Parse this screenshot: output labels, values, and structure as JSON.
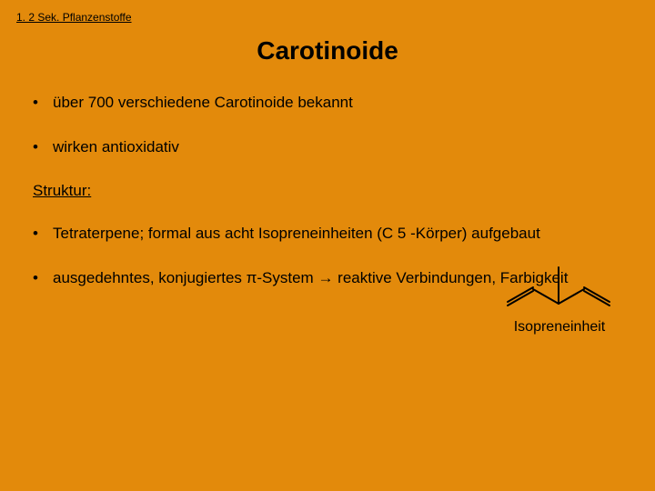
{
  "breadcrumb": "1. 2 Sek. Pflanzenstoffe",
  "title": "Carotinoide",
  "bullets_top": [
    "über 700 verschiedene Carotinoide bekannt",
    "wirken antioxidativ"
  ],
  "struktur_heading": "Struktur:",
  "bullets_struct": [
    "Tetraterpene; formal aus acht Isopreneinheiten (C 5 -Körper) aufgebaut",
    "ausgedehntes, konjugiertes π-System → reaktive Verbindungen, Farbigkeit"
  ],
  "isoprene_label": "Isopreneinheit",
  "colors": {
    "background": "#e38a0b",
    "text": "#000000",
    "structure_stroke": "#000000"
  },
  "isoprene_svg": {
    "width": 130,
    "height": 56,
    "stroke_width": 2,
    "lines": [
      [
        8,
        46,
        36,
        30
      ],
      [
        8,
        50,
        36,
        34
      ],
      [
        36,
        32,
        64,
        48
      ],
      [
        64,
        48,
        92,
        32
      ],
      [
        92,
        30,
        120,
        46
      ],
      [
        92,
        34,
        120,
        50
      ],
      [
        64,
        48,
        64,
        8
      ]
    ]
  }
}
